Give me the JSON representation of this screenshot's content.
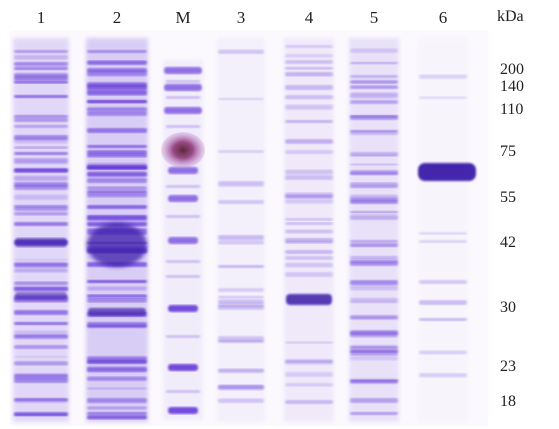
{
  "figure": {
    "unit": "kDa",
    "lanes": [
      {
        "label": "1"
      },
      {
        "label": "2"
      },
      {
        "label": "M"
      },
      {
        "label": "3"
      },
      {
        "label": "4"
      },
      {
        "label": "5"
      },
      {
        "label": "6"
      }
    ],
    "markers": [
      {
        "label": "200"
      },
      {
        "label": "140"
      },
      {
        "label": "110"
      },
      {
        "label": "75"
      },
      {
        "label": "55"
      },
      {
        "label": "42"
      },
      {
        "label": "30"
      },
      {
        "label": "23"
      },
      {
        "label": "18"
      }
    ]
  },
  "colors": {
    "gel_background": "#fbf9fd",
    "band": "#5b2fd8",
    "band_dark": "#3a1aa8",
    "marker_dark": "#7a3f6a"
  }
}
